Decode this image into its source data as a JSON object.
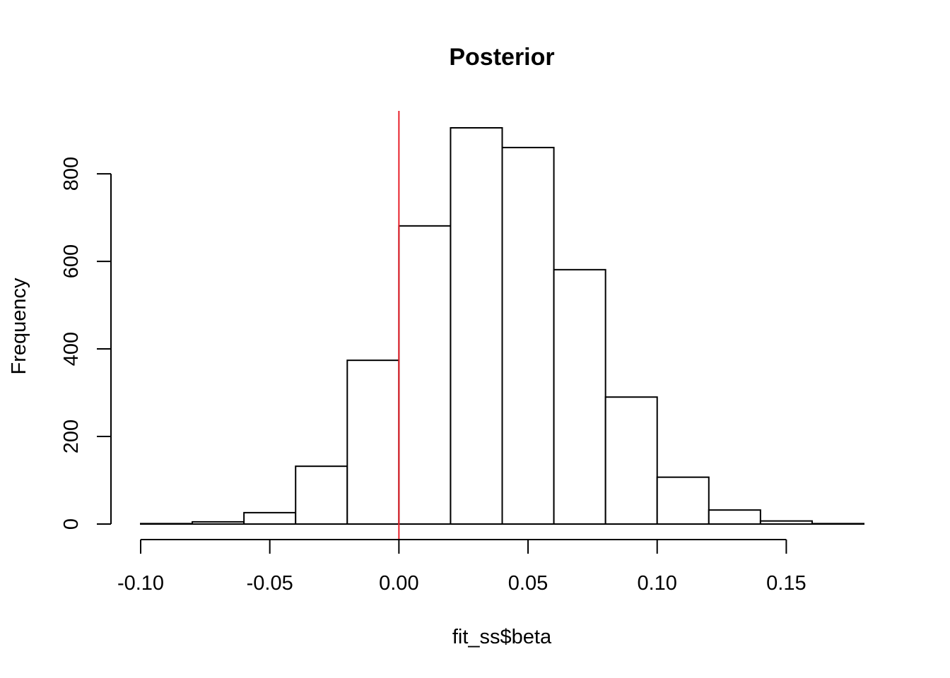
{
  "chart_data": {
    "type": "bar",
    "subtype": "histogram",
    "title": "Posterior",
    "xlabel": "fit_ss$beta",
    "ylabel": "Frequency",
    "bin_edges": [
      -0.1,
      -0.08,
      -0.06,
      -0.04,
      -0.02,
      0.0,
      0.02,
      0.04,
      0.06,
      0.08,
      0.1,
      0.12,
      0.14,
      0.16,
      0.18
    ],
    "values": [
      1,
      5,
      26,
      132,
      374,
      681,
      905,
      860,
      581,
      290,
      107,
      32,
      7,
      1
    ],
    "xlim": [
      -0.1,
      0.18
    ],
    "ylim": [
      0,
      905
    ],
    "x_ticks": [
      -0.1,
      -0.05,
      0.0,
      0.05,
      0.1,
      0.15
    ],
    "x_tick_labels": [
      "-0.10",
      "-0.05",
      "0.00",
      "0.05",
      "0.10",
      "0.15"
    ],
    "y_ticks": [
      0,
      200,
      400,
      600,
      800
    ],
    "y_tick_labels": [
      "0",
      "200",
      "400",
      "600",
      "800"
    ],
    "reference_line": {
      "x": 0.0,
      "color": "#e8202a"
    },
    "bar_fill": "#ffffff",
    "bar_stroke": "#000000",
    "grid": false,
    "legend": "none"
  }
}
